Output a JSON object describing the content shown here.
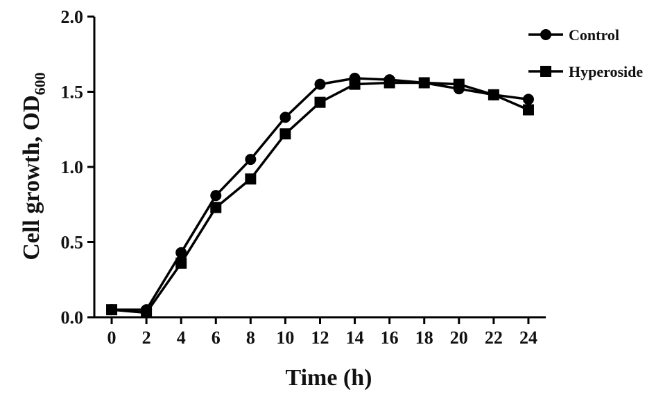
{
  "chart_data": {
    "type": "line",
    "xlabel": "Time (h)",
    "ylabel_main": "Cell growth, OD",
    "ylabel_sub": "600",
    "xlim": [
      -1,
      25
    ],
    "ylim": [
      0,
      2.0
    ],
    "x_ticks": [
      0,
      2,
      4,
      6,
      8,
      10,
      12,
      14,
      16,
      18,
      20,
      22,
      24
    ],
    "y_ticks": [
      0.0,
      0.5,
      1.0,
      1.5,
      2.0
    ],
    "y_tick_labels": [
      "0.0",
      "0.5",
      "1.0",
      "1.5",
      "2.0"
    ],
    "legend_position": "top-right",
    "grid": false,
    "x": [
      0,
      2,
      4,
      6,
      8,
      10,
      12,
      14,
      16,
      18,
      20,
      22,
      24
    ],
    "series": [
      {
        "name": "Control",
        "marker": "circle",
        "color": "#000000",
        "values": [
          0.05,
          0.05,
          0.43,
          0.81,
          1.05,
          1.33,
          1.55,
          1.59,
          1.58,
          1.56,
          1.52,
          1.48,
          1.45
        ]
      },
      {
        "name": "Hyperoside",
        "marker": "square",
        "color": "#000000",
        "values": [
          0.05,
          0.03,
          0.36,
          0.73,
          0.92,
          1.22,
          1.43,
          1.55,
          1.56,
          1.56,
          1.55,
          1.48,
          1.38
        ]
      }
    ]
  }
}
